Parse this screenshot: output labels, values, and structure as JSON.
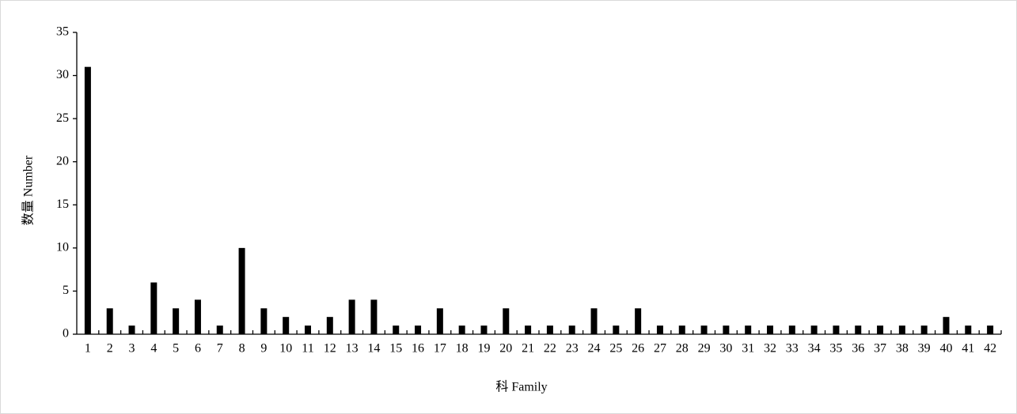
{
  "chart_data": {
    "type": "bar",
    "x_label": "科 Family",
    "y_label": "数量 Number",
    "categories": [
      "1",
      "2",
      "3",
      "4",
      "5",
      "6",
      "7",
      "8",
      "9",
      "10",
      "11",
      "12",
      "13",
      "14",
      "15",
      "16",
      "17",
      "18",
      "19",
      "20",
      "21",
      "22",
      "23",
      "24",
      "25",
      "26",
      "27",
      "28",
      "29",
      "30",
      "31",
      "32",
      "33",
      "34",
      "35",
      "36",
      "37",
      "38",
      "39",
      "40",
      "41",
      "42"
    ],
    "values": [
      31,
      3,
      1,
      6,
      3,
      4,
      1,
      10,
      3,
      2,
      1,
      2,
      4,
      4,
      1,
      1,
      3,
      1,
      1,
      3,
      1,
      1,
      1,
      3,
      1,
      3,
      1,
      1,
      1,
      1,
      1,
      1,
      1,
      1,
      1,
      1,
      1,
      1,
      1,
      2,
      1,
      1
    ],
    "color": "#000000",
    "ylim": [
      0,
      35
    ],
    "yticks": [
      0,
      5,
      10,
      15,
      20,
      25,
      30,
      35
    ],
    "grid": false
  }
}
